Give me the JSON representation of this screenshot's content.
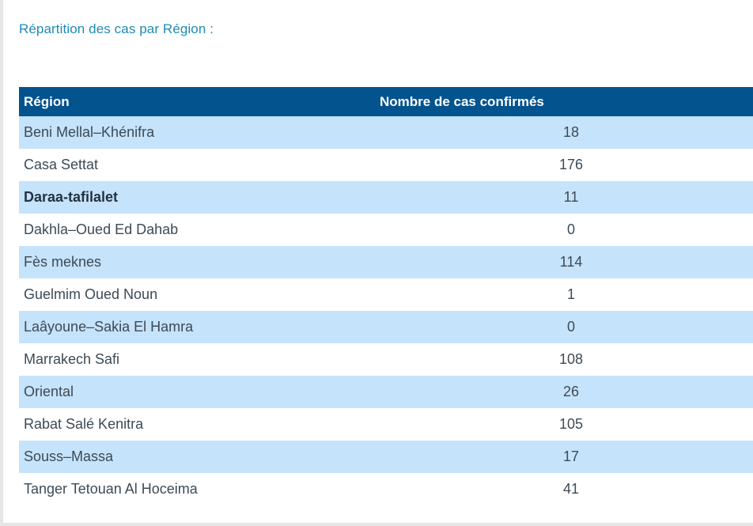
{
  "title": "Répartition des cas par Région :",
  "table": {
    "headers": [
      "Région",
      "Nombre de cas confirmés"
    ],
    "rows": [
      {
        "region": "Beni Mellal–Khénifra",
        "cases": "18"
      },
      {
        "region": "Casa Settat",
        "cases": "176"
      },
      {
        "region": "Daraa-tafilalet",
        "cases": "11"
      },
      {
        "region": "Dakhla–Oued Ed Dahab",
        "cases": "0"
      },
      {
        "region": "Fès meknes",
        "cases": "114"
      },
      {
        "region": "Guelmim Oued Noun",
        "cases": "1"
      },
      {
        "region": "Laâyoune–Sakia El Hamra",
        "cases": "0"
      },
      {
        "region": "Marrakech Safi",
        "cases": "108"
      },
      {
        "region": "Oriental",
        "cases": "26"
      },
      {
        "region": "Rabat Salé Kenitra",
        "cases": "105"
      },
      {
        "region": "Souss–Massa",
        "cases": "17"
      },
      {
        "region": "Tanger Tetouan Al Hoceima",
        "cases": "41"
      }
    ]
  },
  "colors": {
    "title": "#1f8bb4",
    "header_bg": "#03538f",
    "row_stripe": "#c5e3fb",
    "text": "#3d4a55"
  }
}
